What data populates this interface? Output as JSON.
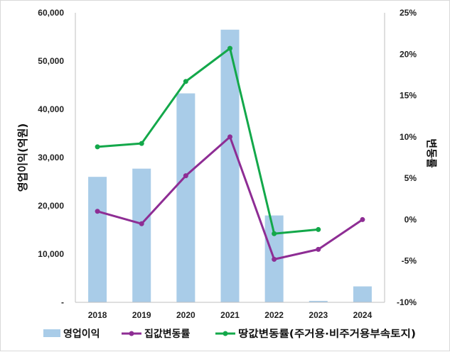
{
  "chart_data": {
    "type": "bar+line",
    "categories": [
      "2018",
      "2019",
      "2020",
      "2021",
      "2022",
      "2023",
      "2024"
    ],
    "left_axis": {
      "label": "영업이익(억원)",
      "range": [
        0,
        60000
      ],
      "tick_values": [
        0,
        10000,
        20000,
        30000,
        40000,
        50000,
        60000
      ],
      "tick_labels": [
        "-",
        "10,000",
        "20,000",
        "30,000",
        "40,000",
        "50,000",
        "60,000"
      ]
    },
    "right_axis": {
      "label": "변동률",
      "range": [
        -10,
        25
      ],
      "tick_values": [
        -10,
        -5,
        0,
        5,
        10,
        15,
        20,
        25
      ],
      "tick_labels": [
        "-10%",
        "-5%",
        "0%",
        "5%",
        "10%",
        "15%",
        "20%",
        "25%"
      ]
    },
    "series": [
      {
        "name": "영업이익",
        "kind": "bar",
        "axis": "left",
        "color": "#a9cce8",
        "values": [
          26000,
          27700,
          43300,
          56500,
          18000,
          300,
          3300
        ]
      },
      {
        "name": "집값변동률",
        "kind": "line",
        "axis": "right",
        "color": "#8e2d94",
        "values": [
          1.0,
          -0.5,
          5.3,
          10.0,
          -4.8,
          -3.6,
          0.0
        ]
      },
      {
        "name": "땅값변동률(주거용·비주거용부속토지)",
        "kind": "line",
        "axis": "right",
        "color": "#13a84a",
        "values": [
          8.8,
          9.2,
          16.7,
          20.7,
          -1.7,
          -1.2,
          null
        ]
      }
    ],
    "grid": false,
    "legend_position": "bottom"
  }
}
